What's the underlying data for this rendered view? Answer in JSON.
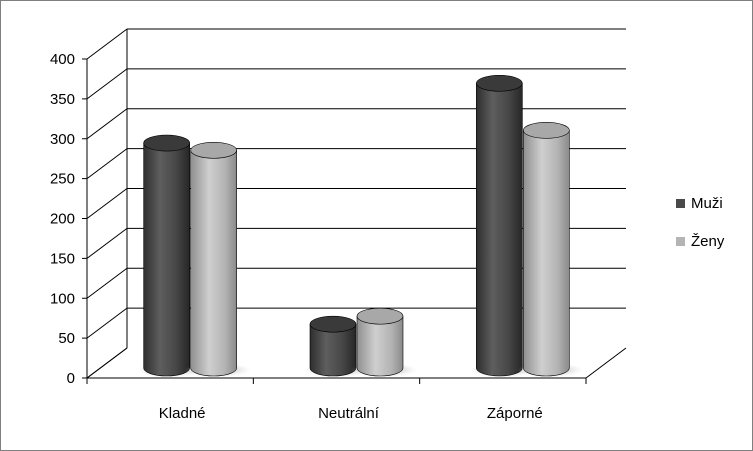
{
  "chart_data": {
    "type": "bar",
    "title": "",
    "xlabel": "",
    "ylabel": "",
    "categories": [
      "Kladné",
      "Neutrální",
      "Záporné"
    ],
    "series": [
      {
        "name": "Muži",
        "values": [
          282,
          55,
          357
        ],
        "color": "#4a4a4a"
      },
      {
        "name": "Ženy",
        "values": [
          273,
          65,
          298
        ],
        "color": "#b4b4b4"
      }
    ],
    "ylim": [
      0,
      400
    ],
    "yticks": [
      "0",
      "50",
      "100",
      "150",
      "200",
      "250",
      "300",
      "350",
      "400"
    ],
    "grid": true,
    "legend": "right",
    "style": "3d-cylinder"
  }
}
